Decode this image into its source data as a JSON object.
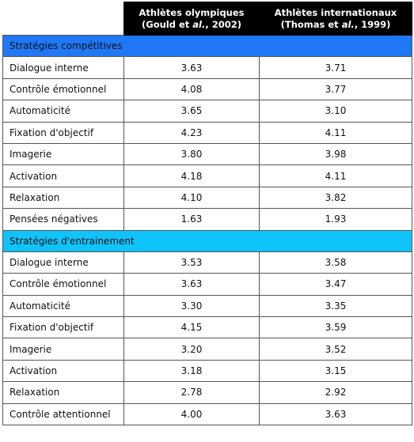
{
  "table": {
    "columns": [
      {
        "line1": "Athlètes olympiques",
        "line2": [
          "(Gould et ",
          "al.",
          ", 2002)"
        ]
      },
      {
        "line1": "Athlètes internationaux",
        "line2": [
          "(Thomas et ",
          "al.",
          ", 1999)"
        ]
      }
    ],
    "sections": [
      {
        "title": "Stratégies compétitives",
        "rows": [
          [
            "Dialogue interne",
            "3.63",
            "3.71"
          ],
          [
            "Contrôle émotionnel",
            "4.08",
            "3.77"
          ],
          [
            "Automaticité",
            "3.65",
            "3.10"
          ],
          [
            "Fixation d'objectif",
            "4.23",
            "4.11"
          ],
          [
            "Imagerie",
            "3.80",
            "3.98"
          ],
          [
            "Activation",
            "4.18",
            "4.11"
          ],
          [
            "Relaxation",
            "4.10",
            "3.82"
          ],
          [
            "Pensées négatives",
            "1.63",
            "1.93"
          ]
        ]
      },
      {
        "title": "Stratégies d'entrainement",
        "rows": [
          [
            "Dialogue interne",
            "3.53",
            "3.58"
          ],
          [
            "Contrôle émotionnel",
            "3.63",
            "3.47"
          ],
          [
            "Automaticité",
            "3.30",
            "3.35"
          ],
          [
            "Fixation d'objectif",
            "4.15",
            "3.59"
          ],
          [
            "Imagerie",
            "3.20",
            "3.52"
          ],
          [
            "Activation",
            "3.18",
            "3.15"
          ],
          [
            "Relaxation",
            "2.78",
            "2.92"
          ],
          [
            "Contrôle attentionnel",
            "4.00",
            "3.63"
          ]
        ]
      }
    ]
  }
}
